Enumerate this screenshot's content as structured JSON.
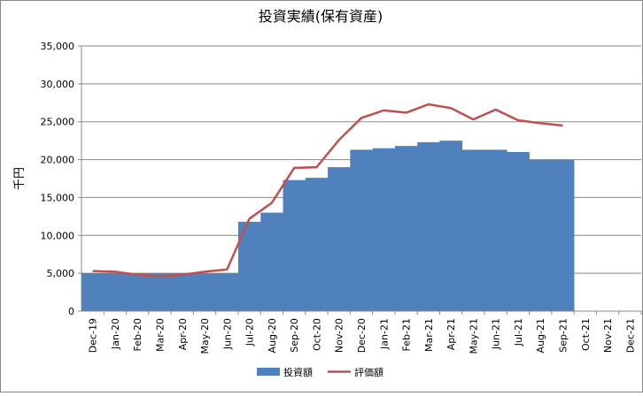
{
  "chart_data": {
    "type": "bar",
    "title": "投資実績(保有資産)",
    "y_label": "千円",
    "categories": [
      "Dec-19",
      "Jan-20",
      "Feb-20",
      "Mar-20",
      "Apr-20",
      "May-20",
      "Jun-20",
      "Jul-20",
      "Aug-20",
      "Sep-20",
      "Oct-20",
      "Nov-20",
      "Dec-20",
      "Jan-21",
      "Feb-21",
      "Mar-21",
      "Apr-21",
      "May-21",
      "Jun-21",
      "Jul-21",
      "Aug-21",
      "Sep-21",
      "Oct-21",
      "Nov-21",
      "Dec-21"
    ],
    "series": [
      {
        "name": "投資額",
        "type": "bar",
        "color": "#4f81bd",
        "values": [
          5000,
          5000,
          5000,
          5000,
          5000,
          5000,
          5000,
          11800,
          13000,
          17300,
          17600,
          19000,
          21300,
          21500,
          21800,
          22300,
          22500,
          21300,
          21300,
          21000,
          20000,
          20000,
          null,
          null,
          null
        ]
      },
      {
        "name": "評価額",
        "type": "line",
        "color": "#c0504d",
        "values": [
          5300,
          5200,
          4800,
          4600,
          4800,
          5200,
          5500,
          12200,
          14300,
          18900,
          19000,
          22600,
          25500,
          26500,
          26200,
          27300,
          26800,
          25300,
          26600,
          25200,
          24800,
          24500,
          null,
          null,
          null
        ]
      }
    ],
    "ylim": [
      0,
      35000
    ],
    "yticks": [
      0,
      {
        "value": 5000,
        "label": "5,000"
      },
      {
        "value": 10000,
        "label": "10,000"
      },
      {
        "value": 15000,
        "label": "15,000"
      },
      {
        "value": 20000,
        "label": "20,000"
      },
      {
        "value": 25000,
        "label": "25,000"
      },
      {
        "value": 30000,
        "label": "30,000"
      },
      {
        "value": 35000,
        "label": "35,000"
      }
    ],
    "grid": true,
    "legend": "bottom"
  }
}
